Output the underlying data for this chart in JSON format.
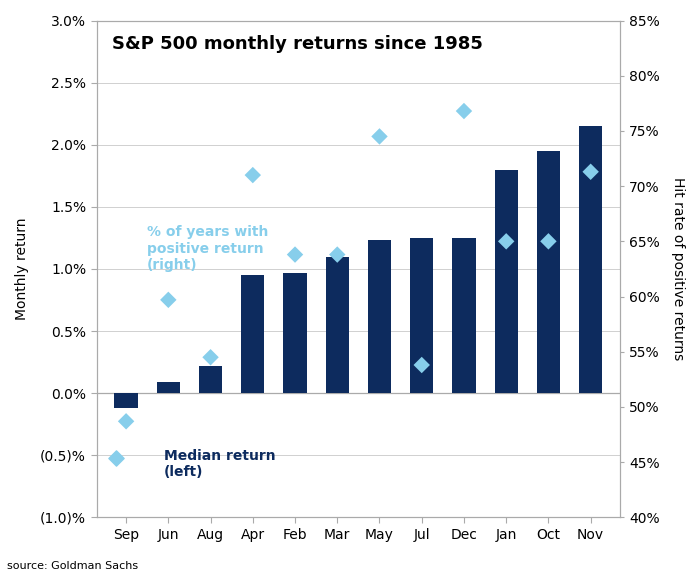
{
  "months": [
    "Sep",
    "Jun",
    "Aug",
    "Apr",
    "Feb",
    "Mar",
    "May",
    "Jul",
    "Dec",
    "Jan",
    "Oct",
    "Nov"
  ],
  "median_returns": [
    -0.0012,
    0.0009,
    0.0022,
    0.0095,
    0.0097,
    0.011,
    0.0123,
    0.0125,
    0.0125,
    0.018,
    0.0195,
    0.0215
  ],
  "hit_rates": [
    0.487,
    0.597,
    0.545,
    0.71,
    0.638,
    0.638,
    0.745,
    0.538,
    0.768,
    0.65,
    0.65,
    0.713
  ],
  "bar_color": "#0d2b5e",
  "diamond_color": "#87ceeb",
  "title": "S&P 500 monthly returns since 1985",
  "ylabel_left": "Monthly return",
  "ylabel_right": "Hit rate of positive returns",
  "source": "source: Goldman Sachs",
  "ylim_left": [
    -0.01,
    0.03
  ],
  "ylim_right": [
    0.4,
    0.85
  ],
  "yticks_left": [
    -0.01,
    -0.005,
    0.0,
    0.005,
    0.01,
    0.015,
    0.02,
    0.025,
    0.03
  ],
  "yticks_right": [
    0.4,
    0.45,
    0.5,
    0.55,
    0.6,
    0.65,
    0.7,
    0.75,
    0.8,
    0.85
  ],
  "annotation_bar": "Median return\n(left)",
  "annotation_diamond": "% of years with\npositive return\n(right)",
  "bg_color": "#ffffff",
  "plot_bg_color": "#ffffff",
  "spine_color": "#aaaaaa",
  "grid_color": "#d0d0d0",
  "title_fontsize": 13,
  "axis_label_fontsize": 10,
  "tick_fontsize": 10,
  "annotation_fontsize": 10,
  "source_fontsize": 8
}
